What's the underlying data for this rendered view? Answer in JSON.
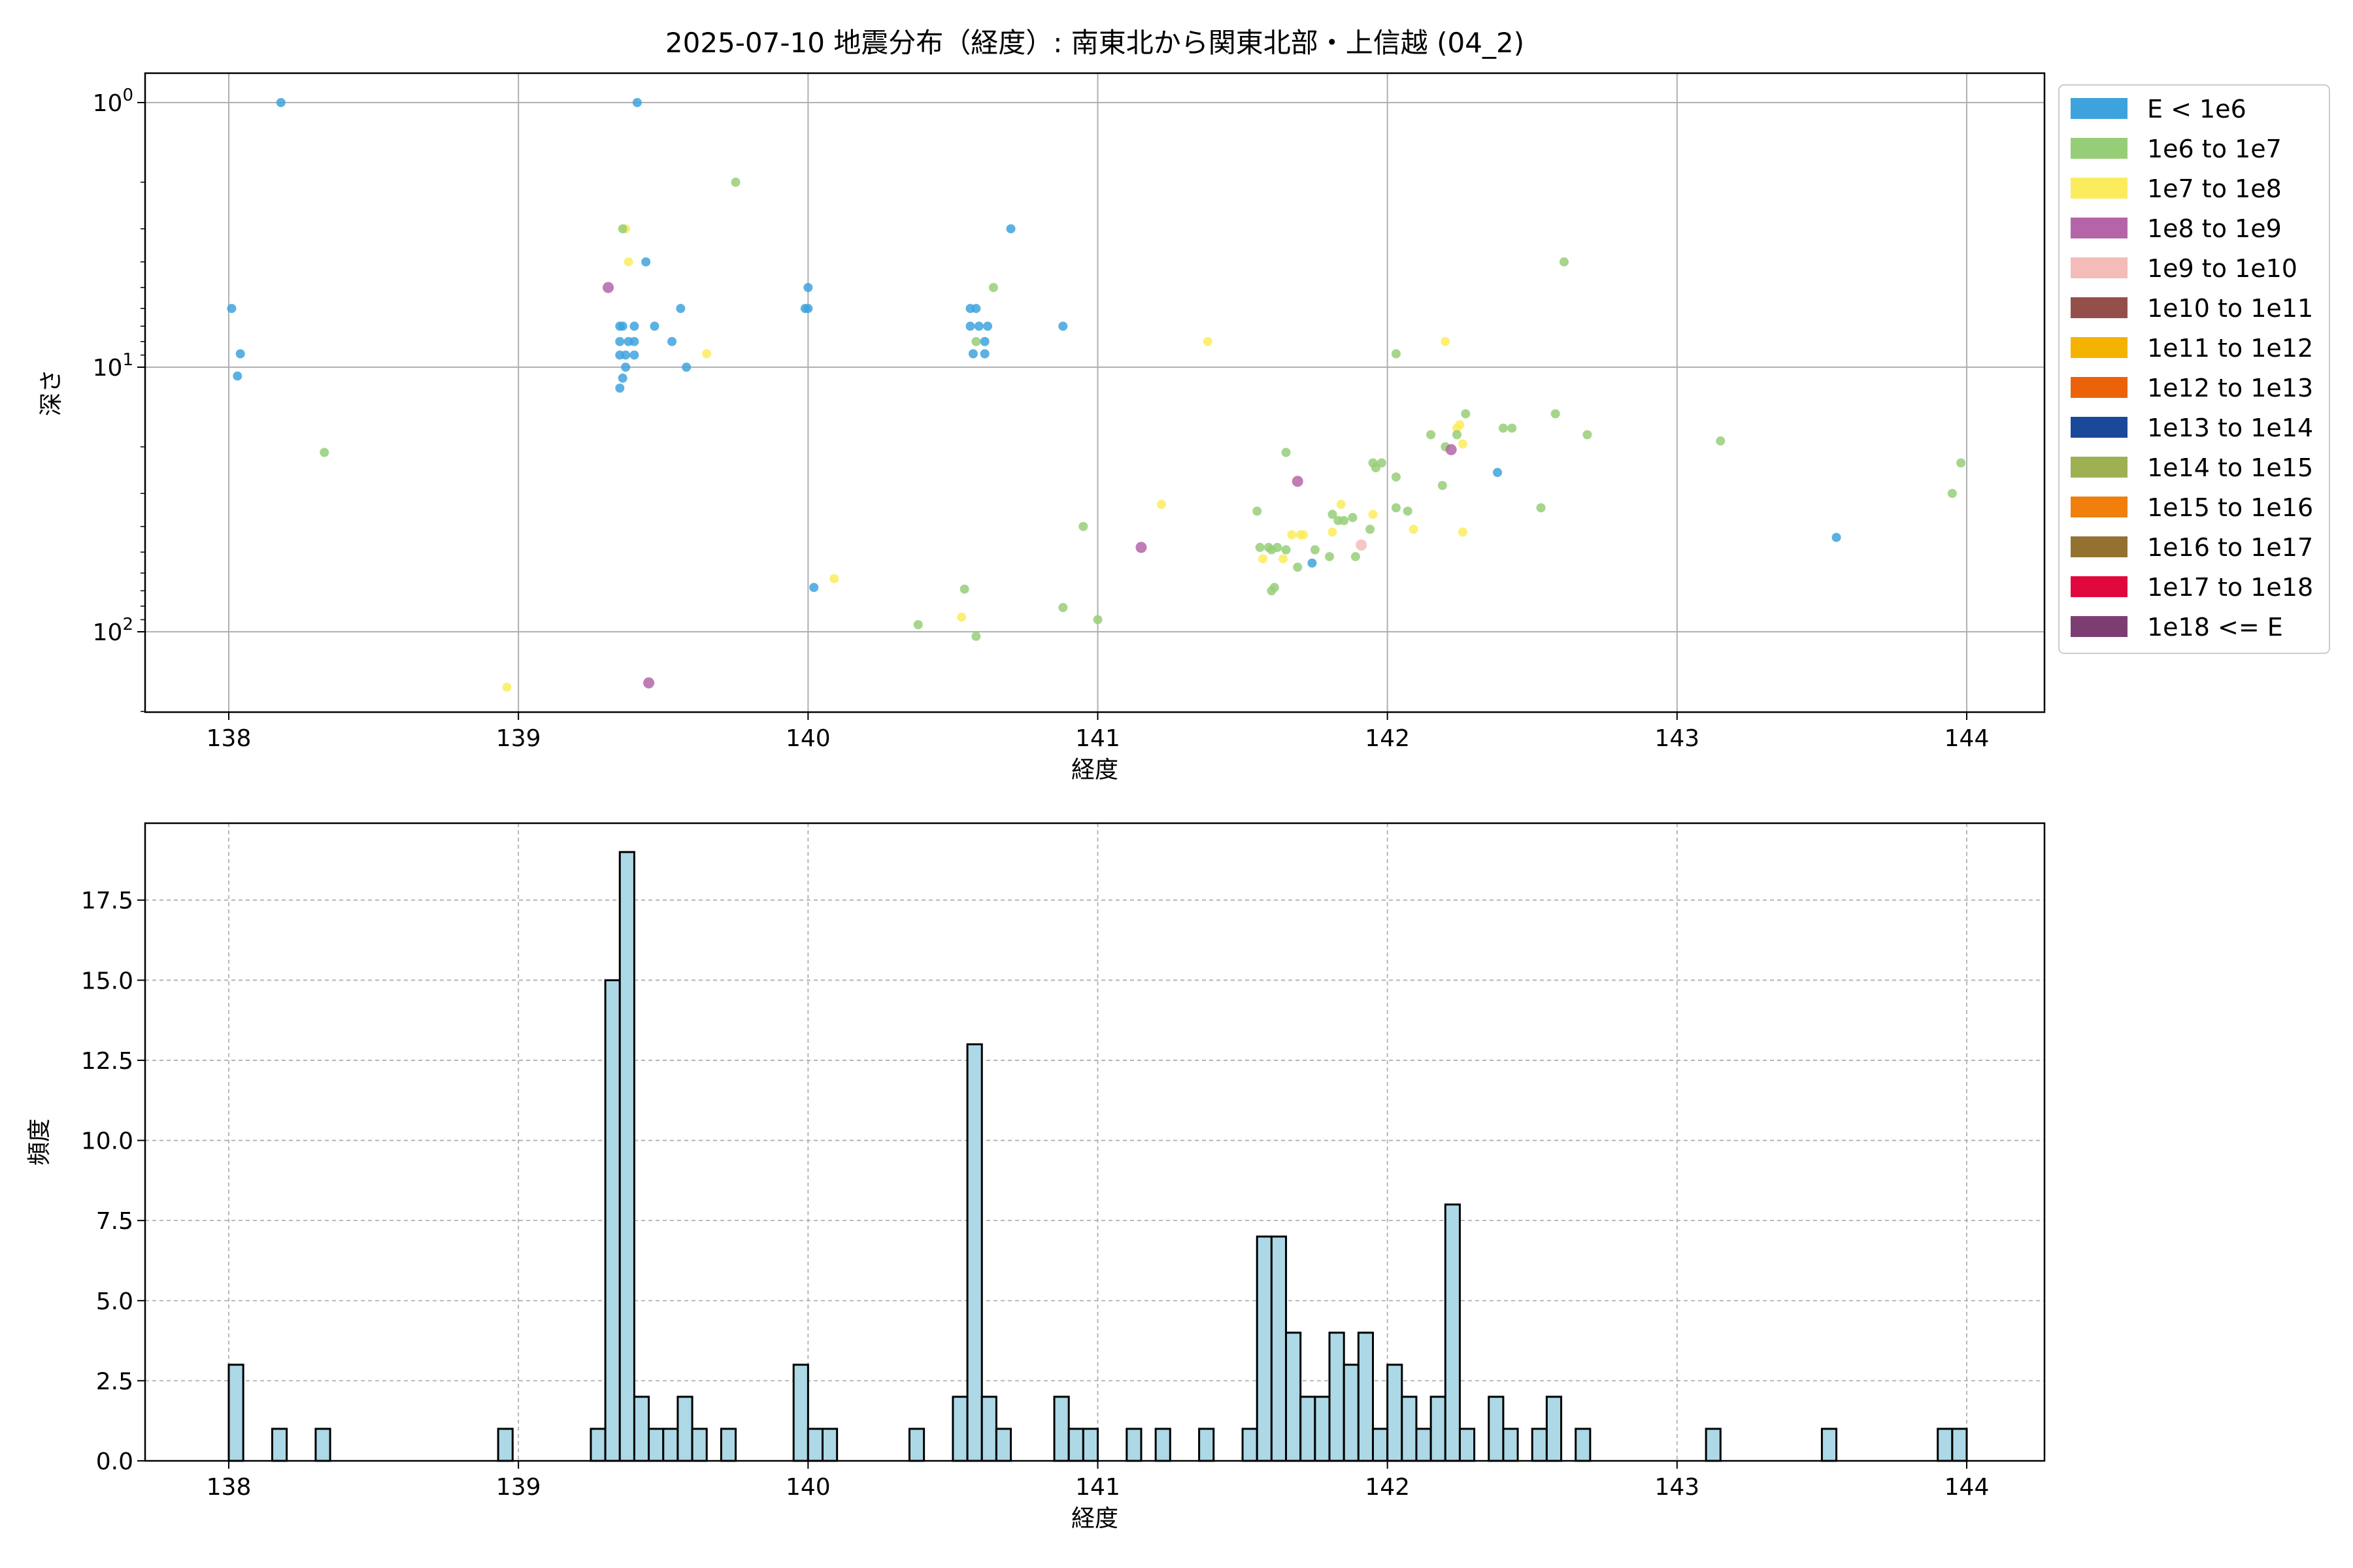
{
  "title": "2025-07-10 地震分布（経度）: 南東北から関東北部・上信越 (04_2)",
  "chart_data": [
    {
      "type": "scatter",
      "xlabel": "経度",
      "ylabel": "深さ",
      "x_ticks": [
        "138",
        "139",
        "140",
        "141",
        "142",
        "143",
        "144"
      ],
      "y_ticks": [
        "10^0",
        "10^1",
        "10^2"
      ],
      "xlim": [
        137.7,
        144.25
      ],
      "ylim_log": [
        200,
        0.8
      ],
      "y_scale": "log",
      "y_inverted": true,
      "grid": true,
      "legend_position": "outside-right",
      "legend": [
        {
          "label": "E < 1e6",
          "color": "#3ea3dd"
        },
        {
          "label": "1e6 to 1e7",
          "color": "#96ce78"
        },
        {
          "label": "1e7 to 1e8",
          "color": "#fbec5d"
        },
        {
          "label": "1e8 to 1e9",
          "color": "#b565a7"
        },
        {
          "label": "1e9 to 1e10",
          "color": "#f4bcb8"
        },
        {
          "label": "1e10 to 1e11",
          "color": "#944f4b"
        },
        {
          "label": "1e11 to 1e12",
          "color": "#f5b301"
        },
        {
          "label": "1e12 to 1e13",
          "color": "#ec6208"
        },
        {
          "label": "1e13 to 1e14",
          "color": "#1b4999"
        },
        {
          "label": "1e14 to 1e15",
          "color": "#9db152"
        },
        {
          "label": "1e15 to 1e16",
          "color": "#f07f0c"
        },
        {
          "label": "1e16 to 1e17",
          "color": "#937231"
        },
        {
          "label": "1e17 to 1e18",
          "color": "#df073c"
        },
        {
          "label": "1e18 <= E",
          "color": "#7c3e72"
        }
      ],
      "points": [
        {
          "x": 138.18,
          "y": 1.0,
          "c": 0
        },
        {
          "x": 139.41,
          "y": 1.0,
          "c": 0
        },
        {
          "x": 138.01,
          "y": 6.0,
          "c": 0
        },
        {
          "x": 138.04,
          "y": 8.9,
          "c": 0
        },
        {
          "x": 138.03,
          "y": 10.8,
          "c": 0
        },
        {
          "x": 138.33,
          "y": 21.0,
          "c": 1
        },
        {
          "x": 139.75,
          "y": 2.0,
          "c": 1
        },
        {
          "x": 139.37,
          "y": 3.0,
          "c": 2
        },
        {
          "x": 139.36,
          "y": 3.0,
          "c": 1
        },
        {
          "x": 139.38,
          "y": 4.0,
          "c": 2
        },
        {
          "x": 139.44,
          "y": 4.0,
          "c": 0
        },
        {
          "x": 139.31,
          "y": 5.0,
          "c": 3
        },
        {
          "x": 139.35,
          "y": 7.0,
          "c": 0
        },
        {
          "x": 139.36,
          "y": 7.0,
          "c": 0
        },
        {
          "x": 139.4,
          "y": 7.0,
          "c": 0
        },
        {
          "x": 139.47,
          "y": 7.0,
          "c": 0
        },
        {
          "x": 139.35,
          "y": 8.0,
          "c": 0
        },
        {
          "x": 139.38,
          "y": 8.0,
          "c": 0
        },
        {
          "x": 139.4,
          "y": 8.0,
          "c": 0
        },
        {
          "x": 139.53,
          "y": 8.0,
          "c": 0
        },
        {
          "x": 139.35,
          "y": 9.0,
          "c": 0
        },
        {
          "x": 139.37,
          "y": 9.0,
          "c": 0
        },
        {
          "x": 139.4,
          "y": 9.0,
          "c": 0
        },
        {
          "x": 139.37,
          "y": 10.0,
          "c": 0
        },
        {
          "x": 139.36,
          "y": 11.0,
          "c": 0
        },
        {
          "x": 139.35,
          "y": 12.0,
          "c": 0
        },
        {
          "x": 139.56,
          "y": 6.0,
          "c": 0
        },
        {
          "x": 139.58,
          "y": 10.0,
          "c": 0
        },
        {
          "x": 139.65,
          "y": 8.9,
          "c": 2
        },
        {
          "x": 138.96,
          "y": 162.0,
          "c": 2
        },
        {
          "x": 139.45,
          "y": 156.0,
          "c": 3
        },
        {
          "x": 140.0,
          "y": 5.0,
          "c": 0
        },
        {
          "x": 139.99,
          "y": 6.0,
          "c": 0
        },
        {
          "x": 140.0,
          "y": 6.0,
          "c": 0
        },
        {
          "x": 140.02,
          "y": 68.0,
          "c": 0
        },
        {
          "x": 140.09,
          "y": 63.0,
          "c": 2
        },
        {
          "x": 140.38,
          "y": 94.0,
          "c": 1
        },
        {
          "x": 140.53,
          "y": 88.0,
          "c": 2
        },
        {
          "x": 140.54,
          "y": 69.0,
          "c": 1
        },
        {
          "x": 140.58,
          "y": 104.0,
          "c": 1
        },
        {
          "x": 140.7,
          "y": 3.0,
          "c": 0
        },
        {
          "x": 140.64,
          "y": 5.0,
          "c": 1
        },
        {
          "x": 140.56,
          "y": 6.0,
          "c": 0
        },
        {
          "x": 140.58,
          "y": 6.0,
          "c": 0
        },
        {
          "x": 140.56,
          "y": 7.0,
          "c": 0
        },
        {
          "x": 140.59,
          "y": 7.0,
          "c": 0
        },
        {
          "x": 140.62,
          "y": 7.0,
          "c": 0
        },
        {
          "x": 140.58,
          "y": 8.0,
          "c": 1
        },
        {
          "x": 140.61,
          "y": 8.0,
          "c": 0
        },
        {
          "x": 140.57,
          "y": 8.9,
          "c": 0
        },
        {
          "x": 140.61,
          "y": 8.9,
          "c": 0
        },
        {
          "x": 140.88,
          "y": 7.0,
          "c": 0
        },
        {
          "x": 140.88,
          "y": 81.0,
          "c": 1
        },
        {
          "x": 140.95,
          "y": 40.0,
          "c": 1
        },
        {
          "x": 141.0,
          "y": 90.0,
          "c": 1
        },
        {
          "x": 141.15,
          "y": 48.0,
          "c": 3
        },
        {
          "x": 141.22,
          "y": 33.0,
          "c": 2
        },
        {
          "x": 141.38,
          "y": 8.0,
          "c": 2
        },
        {
          "x": 141.55,
          "y": 35.0,
          "c": 1
        },
        {
          "x": 141.56,
          "y": 48.0,
          "c": 1
        },
        {
          "x": 141.57,
          "y": 53.0,
          "c": 2
        },
        {
          "x": 141.59,
          "y": 48.0,
          "c": 1
        },
        {
          "x": 141.6,
          "y": 49.0,
          "c": 1
        },
        {
          "x": 141.6,
          "y": 70.0,
          "c": 1
        },
        {
          "x": 141.61,
          "y": 68.0,
          "c": 1
        },
        {
          "x": 141.62,
          "y": 48.0,
          "c": 1
        },
        {
          "x": 141.64,
          "y": 53.0,
          "c": 2
        },
        {
          "x": 141.65,
          "y": 49.0,
          "c": 1
        },
        {
          "x": 141.65,
          "y": 21.0,
          "c": 1
        },
        {
          "x": 141.67,
          "y": 43.0,
          "c": 2
        },
        {
          "x": 141.69,
          "y": 27.0,
          "c": 3
        },
        {
          "x": 141.69,
          "y": 57.0,
          "c": 1
        },
        {
          "x": 141.7,
          "y": 43.0,
          "c": 2
        },
        {
          "x": 141.71,
          "y": 43.0,
          "c": 2
        },
        {
          "x": 141.74,
          "y": 55.0,
          "c": 0
        },
        {
          "x": 141.75,
          "y": 49.0,
          "c": 1
        },
        {
          "x": 141.8,
          "y": 52.0,
          "c": 1
        },
        {
          "x": 141.81,
          "y": 36.0,
          "c": 1
        },
        {
          "x": 141.81,
          "y": 42.0,
          "c": 2
        },
        {
          "x": 141.83,
          "y": 38.0,
          "c": 1
        },
        {
          "x": 141.84,
          "y": 33.0,
          "c": 2
        },
        {
          "x": 141.85,
          "y": 38.0,
          "c": 1
        },
        {
          "x": 141.88,
          "y": 37.0,
          "c": 1
        },
        {
          "x": 141.89,
          "y": 52.0,
          "c": 1
        },
        {
          "x": 141.91,
          "y": 47.0,
          "c": 4
        },
        {
          "x": 141.94,
          "y": 41.0,
          "c": 1
        },
        {
          "x": 141.95,
          "y": 36.0,
          "c": 2
        },
        {
          "x": 141.95,
          "y": 23.0,
          "c": 1
        },
        {
          "x": 141.96,
          "y": 24.0,
          "c": 1
        },
        {
          "x": 141.98,
          "y": 23.0,
          "c": 1
        },
        {
          "x": 142.03,
          "y": 34.0,
          "c": 1
        },
        {
          "x": 142.03,
          "y": 26.0,
          "c": 1
        },
        {
          "x": 142.03,
          "y": 8.9,
          "c": 1
        },
        {
          "x": 142.07,
          "y": 35.0,
          "c": 1
        },
        {
          "x": 142.09,
          "y": 41.0,
          "c": 2
        },
        {
          "x": 142.15,
          "y": 18.0,
          "c": 1
        },
        {
          "x": 142.19,
          "y": 28.0,
          "c": 1
        },
        {
          "x": 142.2,
          "y": 20.0,
          "c": 1
        },
        {
          "x": 142.2,
          "y": 8.0,
          "c": 2
        },
        {
          "x": 142.22,
          "y": 20.5,
          "c": 3
        },
        {
          "x": 142.24,
          "y": 17.0,
          "c": 2
        },
        {
          "x": 142.24,
          "y": 18.0,
          "c": 1
        },
        {
          "x": 142.25,
          "y": 16.5,
          "c": 2
        },
        {
          "x": 142.26,
          "y": 19.5,
          "c": 2
        },
        {
          "x": 142.26,
          "y": 42.0,
          "c": 2
        },
        {
          "x": 142.27,
          "y": 15.0,
          "c": 1
        },
        {
          "x": 142.38,
          "y": 25.0,
          "c": 0
        },
        {
          "x": 142.4,
          "y": 17.0,
          "c": 1
        },
        {
          "x": 142.43,
          "y": 17.0,
          "c": 1
        },
        {
          "x": 142.53,
          "y": 34.0,
          "c": 1
        },
        {
          "x": 142.58,
          "y": 15.0,
          "c": 1
        },
        {
          "x": 142.61,
          "y": 4.0,
          "c": 1
        },
        {
          "x": 142.69,
          "y": 18.0,
          "c": 1
        },
        {
          "x": 143.15,
          "y": 19.0,
          "c": 1
        },
        {
          "x": 143.55,
          "y": 44.0,
          "c": 0
        },
        {
          "x": 143.95,
          "y": 30.0,
          "c": 1
        },
        {
          "x": 143.98,
          "y": 23.0,
          "c": 1
        }
      ]
    },
    {
      "type": "bar",
      "xlabel": "経度",
      "ylabel": "頻度",
      "x_ticks": [
        "138",
        "139",
        "140",
        "141",
        "142",
        "143",
        "144"
      ],
      "y_ticks": [
        "0.0",
        "2.5",
        "5.0",
        "7.5",
        "10.0",
        "12.5",
        "15.0",
        "17.5"
      ],
      "xlim": [
        137.7,
        144.25
      ],
      "ylim": [
        0,
        19.9
      ],
      "bin_width": 0.05,
      "bar_color": "#add8e6",
      "edge_color": "#000000",
      "grid": true,
      "bins": [
        {
          "x": 138.0,
          "v": 3
        },
        {
          "x": 138.15,
          "v": 1
        },
        {
          "x": 138.3,
          "v": 1
        },
        {
          "x": 138.93,
          "v": 1
        },
        {
          "x": 139.25,
          "v": 1
        },
        {
          "x": 139.3,
          "v": 15
        },
        {
          "x": 139.35,
          "v": 19
        },
        {
          "x": 139.4,
          "v": 2
        },
        {
          "x": 139.45,
          "v": 1
        },
        {
          "x": 139.5,
          "v": 1
        },
        {
          "x": 139.55,
          "v": 2
        },
        {
          "x": 139.6,
          "v": 1
        },
        {
          "x": 139.7,
          "v": 1
        },
        {
          "x": 139.95,
          "v": 3
        },
        {
          "x": 140.0,
          "v": 1
        },
        {
          "x": 140.05,
          "v": 1
        },
        {
          "x": 140.35,
          "v": 1
        },
        {
          "x": 140.5,
          "v": 2
        },
        {
          "x": 140.55,
          "v": 13
        },
        {
          "x": 140.6,
          "v": 2
        },
        {
          "x": 140.65,
          "v": 1
        },
        {
          "x": 140.85,
          "v": 2
        },
        {
          "x": 140.9,
          "v": 1
        },
        {
          "x": 140.95,
          "v": 1
        },
        {
          "x": 141.1,
          "v": 1
        },
        {
          "x": 141.2,
          "v": 1
        },
        {
          "x": 141.35,
          "v": 1
        },
        {
          "x": 141.5,
          "v": 1
        },
        {
          "x": 141.55,
          "v": 7
        },
        {
          "x": 141.6,
          "v": 7
        },
        {
          "x": 141.65,
          "v": 4
        },
        {
          "x": 141.7,
          "v": 2
        },
        {
          "x": 141.75,
          "v": 2
        },
        {
          "x": 141.8,
          "v": 4
        },
        {
          "x": 141.85,
          "v": 3
        },
        {
          "x": 141.9,
          "v": 4
        },
        {
          "x": 141.95,
          "v": 1
        },
        {
          "x": 142.0,
          "v": 3
        },
        {
          "x": 142.05,
          "v": 2
        },
        {
          "x": 142.1,
          "v": 1
        },
        {
          "x": 142.15,
          "v": 2
        },
        {
          "x": 142.2,
          "v": 8
        },
        {
          "x": 142.25,
          "v": 1
        },
        {
          "x": 142.35,
          "v": 2
        },
        {
          "x": 142.4,
          "v": 1
        },
        {
          "x": 142.5,
          "v": 1
        },
        {
          "x": 142.55,
          "v": 2
        },
        {
          "x": 142.65,
          "v": 1
        },
        {
          "x": 143.1,
          "v": 1
        },
        {
          "x": 143.5,
          "v": 1
        },
        {
          "x": 143.9,
          "v": 1
        },
        {
          "x": 143.95,
          "v": 1
        }
      ]
    }
  ]
}
